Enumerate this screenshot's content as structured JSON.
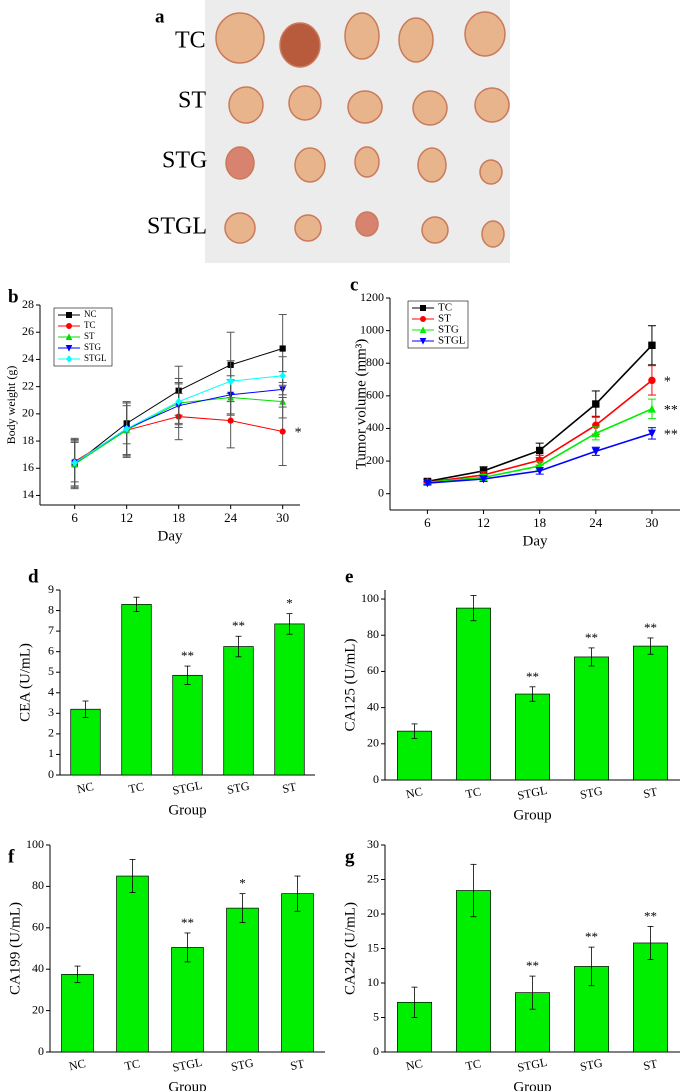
{
  "photo": {
    "label": "a",
    "rows": [
      "TC",
      "ST",
      "STG",
      "STGL"
    ]
  },
  "chart_data": [
    {
      "type": "line",
      "label": "b",
      "ylabel": "Body weight (g)",
      "xlabel": "Day",
      "x": [
        6,
        12,
        18,
        24,
        30
      ],
      "xlim": [
        2,
        32
      ],
      "xticks": [
        6,
        12,
        18,
        24,
        30
      ],
      "ylim": [
        13.3,
        28
      ],
      "yticks": [
        14,
        16,
        18,
        20,
        22,
        24,
        26,
        28
      ],
      "legend": "top-left",
      "series": [
        {
          "name": "NC",
          "color": "#000000",
          "marker": "square",
          "values": [
            16.3,
            19.3,
            21.7,
            23.6,
            24.8
          ],
          "errors": [
            1.8,
            1.5,
            1.8,
            2.4,
            2.5
          ]
        },
        {
          "name": "TC",
          "color": "#ff0000",
          "marker": "circle",
          "values": [
            16.5,
            18.8,
            19.8,
            19.5,
            18.7
          ],
          "errors": [
            1.5,
            2.0,
            1.7,
            2.0,
            2.5
          ],
          "end_label": "*"
        },
        {
          "name": "ST",
          "color": "#00dd00",
          "marker": "triangle-up",
          "values": [
            16.3,
            18.8,
            20.8,
            21.2,
            20.9
          ],
          "errors": [
            1.6,
            1.8,
            1.5,
            1.3,
            1.2
          ]
        },
        {
          "name": "STG",
          "color": "#0000ff",
          "marker": "triangle-down",
          "values": [
            16.4,
            18.9,
            20.6,
            21.4,
            21.8
          ],
          "errors": [
            1.7,
            1.9,
            1.6,
            1.4,
            1.3
          ]
        },
        {
          "name": "STGL",
          "color": "#00ffff",
          "marker": "diamond",
          "values": [
            16.4,
            18.9,
            20.9,
            22.4,
            22.8
          ],
          "errors": [
            1.8,
            2.0,
            1.7,
            1.5,
            1.4
          ]
        }
      ]
    },
    {
      "type": "line",
      "label": "c",
      "ylabel": "Tumor volume (mm³)",
      "xlabel": "Day",
      "x": [
        6,
        12,
        18,
        24,
        30
      ],
      "xlim": [
        2,
        33
      ],
      "xticks": [
        6,
        12,
        18,
        24,
        30
      ],
      "ylim": [
        -100,
        1200
      ],
      "yticks": [
        0,
        200,
        400,
        600,
        800,
        1000,
        1200
      ],
      "legend": "top-left",
      "series": [
        {
          "name": "TC",
          "color": "#000000",
          "marker": "square",
          "values": [
            75,
            140,
            265,
            550,
            910
          ],
          "errors": [
            15,
            25,
            45,
            80,
            120
          ]
        },
        {
          "name": "ST",
          "color": "#ff0000",
          "marker": "circle",
          "values": [
            70,
            115,
            205,
            420,
            695
          ],
          "errors": [
            12,
            20,
            30,
            55,
            90
          ],
          "end_label": "*"
        },
        {
          "name": "STG",
          "color": "#00ee00",
          "marker": "triangle-up",
          "values": [
            70,
            100,
            170,
            370,
            520
          ],
          "errors": [
            10,
            18,
            25,
            40,
            60
          ],
          "end_label": "**"
        },
        {
          "name": "STGL",
          "color": "#0000ff",
          "marker": "triangle-down",
          "values": [
            65,
            90,
            140,
            260,
            370
          ],
          "errors": [
            10,
            15,
            20,
            25,
            35
          ],
          "end_label": "**"
        }
      ]
    },
    {
      "type": "bar",
      "label": "d",
      "ylabel": "CEA (U/mL)",
      "xlabel": "Group",
      "color": "#00ee00",
      "categories": [
        "NC",
        "TC",
        "STGL",
        "STG",
        "ST"
      ],
      "values": [
        3.2,
        8.3,
        4.85,
        6.25,
        7.35
      ],
      "errors": [
        0.4,
        0.35,
        0.45,
        0.5,
        0.5
      ],
      "significance": [
        null,
        null,
        "**",
        "**",
        "*"
      ],
      "ylim": [
        0,
        9
      ],
      "yticks": [
        0,
        1,
        2,
        3,
        4,
        5,
        6,
        7,
        8,
        9
      ]
    },
    {
      "type": "bar",
      "label": "e",
      "ylabel": "CA125 (U/mL)",
      "xlabel": "Group",
      "color": "#00ee00",
      "categories": [
        "NC",
        "TC",
        "STGL",
        "STG",
        "ST"
      ],
      "values": [
        27,
        95,
        47.5,
        68,
        74
      ],
      "errors": [
        4,
        7,
        4,
        5,
        4.5
      ],
      "significance": [
        null,
        null,
        "**",
        "**",
        "**"
      ],
      "ylim": [
        0,
        105
      ],
      "yticks": [
        0,
        20,
        40,
        60,
        80,
        100
      ]
    },
    {
      "type": "bar",
      "label": "f",
      "ylabel": "CA199 (U/mL)",
      "xlabel": "Group",
      "color": "#00ee00",
      "categories": [
        "NC",
        "TC",
        "STGL",
        "STG",
        "ST"
      ],
      "values": [
        37.5,
        85,
        50.5,
        69.5,
        76.5
      ],
      "errors": [
        4,
        8,
        7,
        7,
        8.5
      ],
      "significance": [
        null,
        null,
        "**",
        "*",
        null
      ],
      "ylim": [
        0,
        100
      ],
      "yticks": [
        0,
        20,
        40,
        60,
        80,
        100
      ]
    },
    {
      "type": "bar",
      "label": "g",
      "ylabel": "CA242 (U/mL)",
      "xlabel": "Group",
      "color": "#00ee00",
      "categories": [
        "NC",
        "TC",
        "STGL",
        "STG",
        "ST"
      ],
      "values": [
        7.2,
        23.4,
        8.6,
        12.4,
        15.8
      ],
      "errors": [
        2.2,
        3.8,
        2.4,
        2.8,
        2.4
      ],
      "significance": [
        null,
        null,
        "**",
        "**",
        "**"
      ],
      "ylim": [
        0,
        30
      ],
      "yticks": [
        0,
        5,
        10,
        15,
        20,
        25,
        30
      ]
    }
  ]
}
